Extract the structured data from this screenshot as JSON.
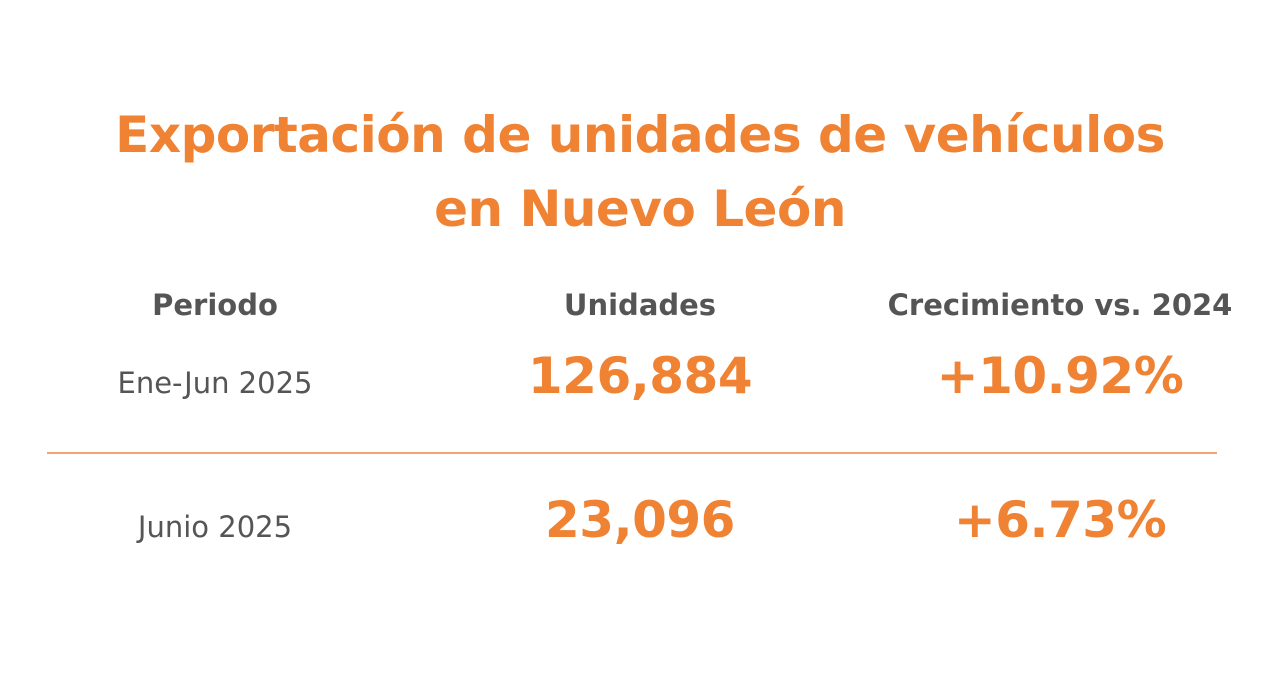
{
  "title": {
    "line1": "Exportación de unidades de vehículos",
    "line2": "en Nuevo León"
  },
  "chart_data": {
    "type": "table",
    "title": "Exportación de unidades de vehículos en Nuevo León",
    "columns": [
      "Periodo",
      "Unidades",
      "Crecimiento vs. 2024"
    ],
    "rows": [
      {
        "periodo": "Ene-Jun 2025",
        "unidades": "126,884",
        "crecimiento": "+10.92%"
      },
      {
        "periodo": "Junio 2025",
        "unidades": "23,096",
        "crecimiento": "+6.73%"
      }
    ],
    "values": {
      "unidades": [
        126884,
        23096
      ],
      "crecimiento_pct": [
        10.92,
        6.73
      ]
    }
  },
  "colors": {
    "accent": "#EF8233",
    "divider": "#F2A66E",
    "text": "#555555",
    "background": "#FFFFFF"
  }
}
